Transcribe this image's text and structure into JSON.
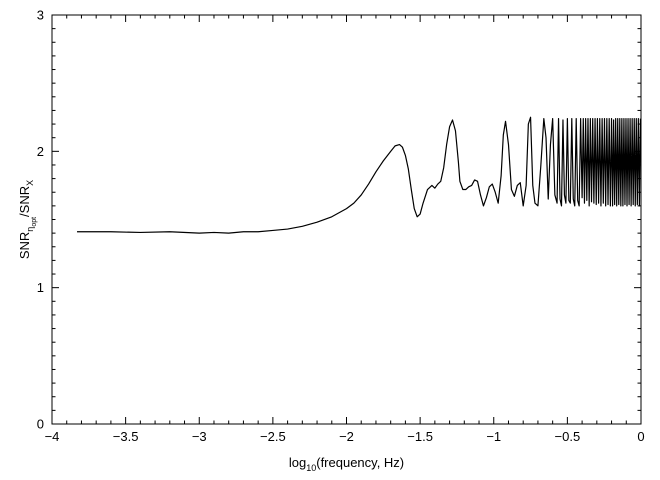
{
  "chart_data": {
    "type": "line",
    "title": "",
    "xlabel": {
      "pre": "log",
      "sub": "10",
      "post": "(frequency, Hz)"
    },
    "ylabel": {
      "pre": "SNR",
      "sub1": "η",
      "subsub": "opt",
      "mid": "/SNR",
      "sub2": "X"
    },
    "xlim": [
      -4,
      0
    ],
    "ylim": [
      0,
      3
    ],
    "grid": false,
    "x_ticks": [
      -4,
      -3.5,
      -3,
      -2.5,
      -2,
      -1.5,
      -1,
      -0.5,
      0
    ],
    "x_tick_labels": [
      "−4",
      "−3.5",
      "−3",
      "−2.5",
      "−2",
      "−1.5",
      "−1",
      "−0.5",
      "0"
    ],
    "y_ticks": [
      0,
      1,
      2,
      3
    ],
    "y_tick_labels": [
      "0",
      "1",
      "2",
      "3"
    ],
    "series": [
      {
        "color": "#000000",
        "x": [
          -3.83,
          -3.6,
          -3.4,
          -3.2,
          -3.0,
          -2.9,
          -2.8,
          -2.7,
          -2.6,
          -2.5,
          -2.4,
          -2.3,
          -2.2,
          -2.1,
          -2.0,
          -1.95,
          -1.9,
          -1.85,
          -1.8,
          -1.75,
          -1.7,
          -1.67,
          -1.64,
          -1.62,
          -1.6,
          -1.58,
          -1.56,
          -1.54,
          -1.52,
          -1.5,
          -1.48,
          -1.45,
          -1.42,
          -1.4,
          -1.38,
          -1.36,
          -1.34,
          -1.32,
          -1.3,
          -1.28,
          -1.26,
          -1.24,
          -1.23,
          -1.21,
          -1.19,
          -1.17,
          -1.15,
          -1.13,
          -1.11,
          -1.09,
          -1.07,
          -1.05,
          -1.03,
          -1.01,
          -0.99,
          -0.97,
          -0.95,
          -0.935,
          -0.92,
          -0.9,
          -0.88,
          -0.86,
          -0.84,
          -0.82,
          -0.8,
          -0.78,
          -0.765,
          -0.75,
          -0.735,
          -0.72,
          -0.7,
          -0.68,
          -0.66,
          -0.645,
          -0.63,
          -0.615,
          -0.6,
          -0.585,
          -0.57,
          -0.56,
          -0.55,
          -0.54,
          -0.53,
          -0.52,
          -0.51,
          -0.5,
          -0.49,
          -0.48,
          -0.47,
          -0.46,
          -0.45,
          -0.44,
          -0.43,
          -0.42,
          -0.41,
          -0.4,
          -0.392,
          -0.384,
          -0.376,
          -0.368,
          -0.36,
          -0.352,
          -0.344,
          -0.336,
          -0.328,
          -0.32,
          -0.312,
          -0.304,
          -0.296,
          -0.288,
          -0.28,
          -0.272,
          -0.264,
          -0.256,
          -0.248,
          -0.24,
          -0.232,
          -0.224,
          -0.216,
          -0.208,
          -0.2,
          -0.193,
          -0.186,
          -0.179,
          -0.172,
          -0.165,
          -0.158,
          -0.151,
          -0.144,
          -0.137,
          -0.13,
          -0.123,
          -0.116,
          -0.109,
          -0.102,
          -0.095,
          -0.088,
          -0.081,
          -0.074,
          -0.067,
          -0.06,
          -0.053,
          -0.046,
          -0.039,
          -0.032,
          -0.025,
          -0.018,
          -0.011,
          -0.004
        ],
        "y": [
          1.41,
          1.41,
          1.405,
          1.41,
          1.4,
          1.405,
          1.4,
          1.41,
          1.41,
          1.42,
          1.43,
          1.45,
          1.48,
          1.52,
          1.58,
          1.62,
          1.68,
          1.76,
          1.85,
          1.93,
          2.0,
          2.04,
          2.05,
          2.03,
          1.97,
          1.87,
          1.72,
          1.58,
          1.52,
          1.54,
          1.62,
          1.72,
          1.75,
          1.73,
          1.76,
          1.78,
          1.88,
          2.05,
          2.18,
          2.23,
          2.15,
          1.92,
          1.78,
          1.72,
          1.72,
          1.74,
          1.75,
          1.79,
          1.78,
          1.68,
          1.6,
          1.66,
          1.74,
          1.76,
          1.7,
          1.62,
          1.82,
          2.12,
          2.22,
          2.05,
          1.72,
          1.67,
          1.75,
          1.77,
          1.6,
          1.75,
          2.2,
          2.25,
          1.75,
          1.62,
          1.6,
          1.9,
          2.24,
          2.1,
          1.65,
          2.05,
          2.24,
          1.68,
          1.62,
          2.24,
          1.65,
          1.6,
          2.23,
          1.68,
          1.62,
          2.24,
          1.64,
          1.62,
          2.24,
          1.65,
          1.6,
          2.24,
          1.64,
          1.6,
          2.24,
          1.66,
          2.24,
          1.62,
          2.24,
          1.64,
          2.24,
          1.6,
          2.24,
          1.63,
          2.24,
          1.62,
          2.24,
          1.61,
          2.24,
          1.62,
          2.24,
          1.6,
          2.24,
          1.62,
          2.24,
          1.6,
          2.24,
          1.61,
          2.24,
          1.6,
          2.24,
          1.6,
          2.23,
          1.61,
          2.24,
          1.6,
          2.24,
          1.61,
          2.24,
          1.6,
          2.24,
          1.6,
          2.24,
          1.61,
          2.24,
          1.6,
          2.24,
          1.61,
          2.24,
          1.6,
          2.24,
          1.61,
          2.24,
          1.6,
          2.24,
          1.61,
          2.24,
          1.6,
          2.24
        ]
      }
    ]
  }
}
